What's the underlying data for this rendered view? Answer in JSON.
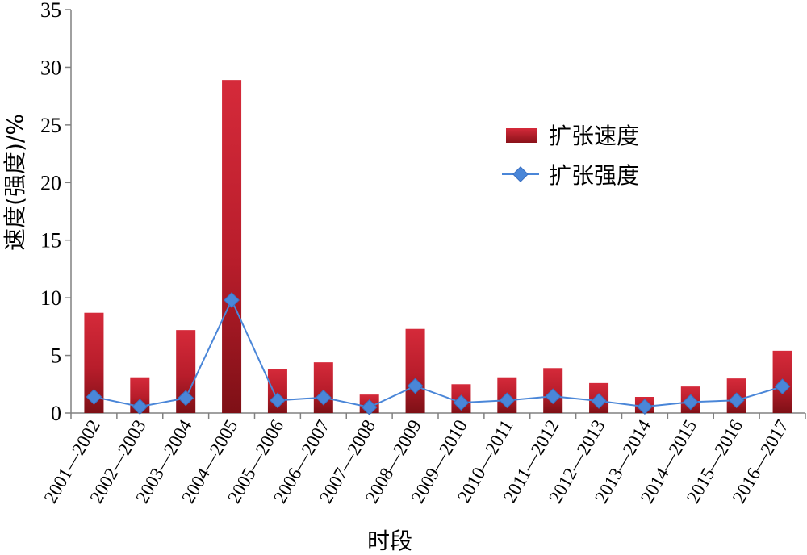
{
  "chart_data": {
    "type": "bar",
    "categories": [
      "2001—2002",
      "2002—2003",
      "2003—2004",
      "2004—2005",
      "2005—2006",
      "2006—2007",
      "2007—2008",
      "2008—2009",
      "2009—2010",
      "2010—2011",
      "2011—2012",
      "2012—2013",
      "2013—2014",
      "2014—2015",
      "2015—2016",
      "2016—2017"
    ],
    "series": [
      {
        "name": "扩张速度",
        "kind": "bar",
        "color": "#c0202e",
        "values": [
          8.7,
          3.1,
          7.2,
          28.9,
          3.8,
          4.4,
          1.6,
          7.3,
          2.5,
          3.1,
          3.9,
          2.6,
          1.4,
          2.3,
          3.0,
          5.4
        ]
      },
      {
        "name": "扩张强度",
        "kind": "line",
        "color": "#4a86d8",
        "values": [
          1.4,
          0.55,
          1.3,
          9.8,
          1.1,
          1.35,
          0.5,
          2.35,
          0.9,
          1.1,
          1.45,
          1.05,
          0.55,
          0.95,
          1.1,
          2.3
        ]
      }
    ],
    "xlabel": "时段",
    "ylabel": "速度(强度)/%",
    "ylim": [
      0,
      35
    ],
    "yticks": [
      0,
      5,
      10,
      15,
      20,
      25,
      30,
      35
    ],
    "grid": false,
    "legend": "right-upper"
  }
}
